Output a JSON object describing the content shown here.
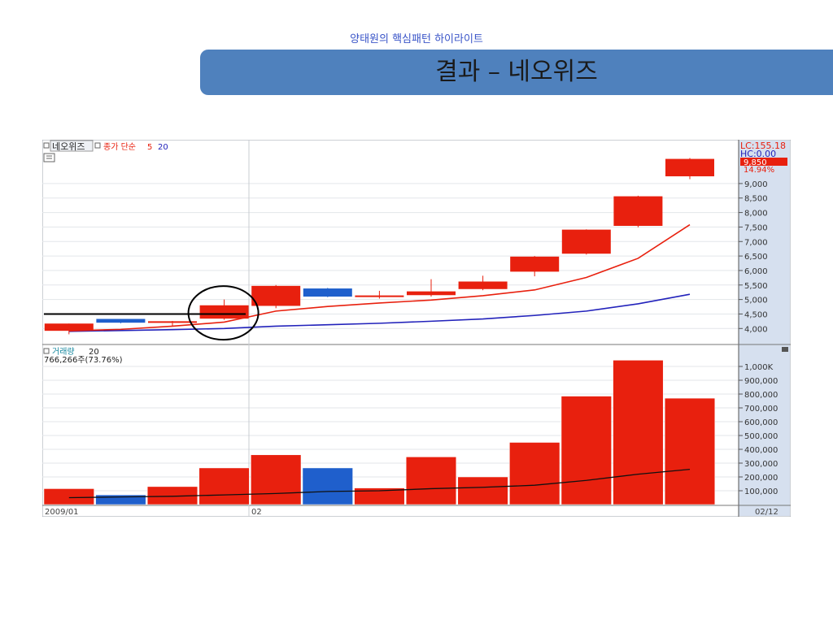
{
  "slide": {
    "subtitle": "양태원의 핵심패턴 하이라이트",
    "title": "결과 – 네오위즈"
  },
  "colors": {
    "up": "#e8200e",
    "down": "#1f5fcc",
    "ma5": "#e8200e",
    "ma20": "#2222bb",
    "axis_bg": "#d6e0ef",
    "banner": "#4f81bd"
  },
  "chart_data": [
    {
      "type": "candlestick",
      "header": {
        "name": "네오위즈",
        "indicator": "종가 단순",
        "period_short": "5",
        "period_long": "20"
      },
      "side_labels": {
        "lc": "LC:155.18",
        "hc": "HC:0.00",
        "last_price": "9,850",
        "last_change": "14.94%"
      },
      "yticks": [
        "4,000",
        "4,500",
        "5,000",
        "5,500",
        "6,000",
        "6,500",
        "7,000",
        "7,500",
        "8,000",
        "8,500",
        "9,000"
      ],
      "ylim": [
        3700,
        9950
      ],
      "candles": [
        {
          "open": 3920,
          "high": 4170,
          "low": 3800,
          "close": 4170,
          "up": true
        },
        {
          "open": 4330,
          "high": 4330,
          "low": 4180,
          "close": 4200,
          "up": false
        },
        {
          "open": 4240,
          "high": 4260,
          "low": 4080,
          "close": 4250,
          "up": true
        },
        {
          "open": 4340,
          "high": 5000,
          "low": 4300,
          "close": 4800,
          "up": true
        },
        {
          "open": 4780,
          "high": 5500,
          "low": 4700,
          "close": 5470,
          "up": true
        },
        {
          "open": 5380,
          "high": 5400,
          "low": 5080,
          "close": 5100,
          "up": false
        },
        {
          "open": 5130,
          "high": 5300,
          "low": 5030,
          "close": 5140,
          "up": true
        },
        {
          "open": 5150,
          "high": 5700,
          "low": 5100,
          "close": 5280,
          "up": true
        },
        {
          "open": 5360,
          "high": 5820,
          "low": 5320,
          "close": 5620,
          "up": true
        },
        {
          "open": 5960,
          "high": 6500,
          "low": 5800,
          "close": 6480,
          "up": true
        },
        {
          "open": 6580,
          "high": 7420,
          "low": 6550,
          "close": 7410,
          "up": true
        },
        {
          "open": 7540,
          "high": 8580,
          "low": 7490,
          "close": 8560,
          "up": true
        },
        {
          "open": 9250,
          "high": 9880,
          "low": 9150,
          "close": 9850,
          "up": true
        }
      ],
      "ma5": [
        3920,
        3970,
        4080,
        4220,
        4600,
        4760,
        4880,
        4980,
        5130,
        5330,
        5760,
        6420,
        7580
      ],
      "ma20": [
        3900,
        3930,
        3960,
        4000,
        4080,
        4130,
        4180,
        4250,
        4330,
        4450,
        4600,
        4850,
        5180
      ],
      "reference_line": 4500
    },
    {
      "type": "bar",
      "header": {
        "name": "거래량",
        "period": "20",
        "info": "766,266주(73.76%)"
      },
      "yticks": [
        "100,000",
        "200,000",
        "300,000",
        "400,000",
        "500,000",
        "600,000",
        "700,000",
        "800,000",
        "900,000",
        "1,000K"
      ],
      "ylim": [
        0,
        1100000
      ],
      "values": [
        115000,
        70000,
        130000,
        265000,
        360000,
        265000,
        120000,
        345000,
        200000,
        450000,
        785000,
        1045000,
        770000
      ],
      "up": [
        true,
        false,
        true,
        true,
        true,
        false,
        true,
        true,
        true,
        true,
        true,
        true,
        true
      ],
      "ma20": [
        50000,
        55000,
        60000,
        70000,
        80000,
        95000,
        100000,
        115000,
        125000,
        140000,
        175000,
        220000,
        255000
      ]
    }
  ],
  "x_axis": {
    "labels": [
      "2009/01",
      "02",
      "02/12"
    ]
  }
}
